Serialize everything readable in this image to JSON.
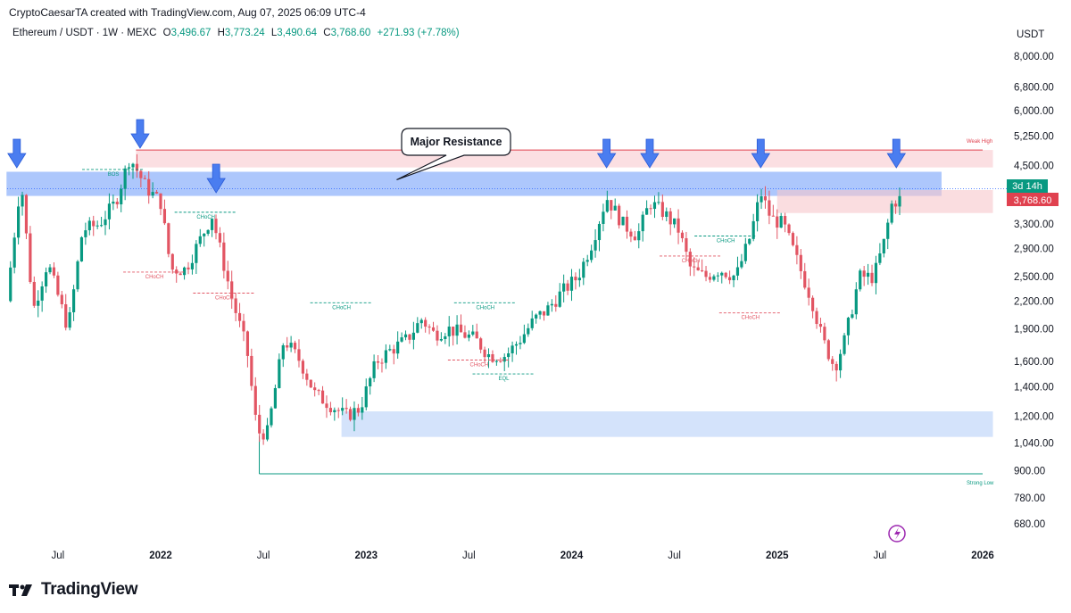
{
  "header": {
    "credit": "CryptoCaesarTA created with TradingView.com, Aug 07, 2025 06:09 UTC-4",
    "symbol": "Ethereum / USDT · 1W · MEXC",
    "open_label": "O",
    "open": "3,496.67",
    "high_label": "H",
    "high": "3,773.24",
    "low_label": "L",
    "low": "3,490.64",
    "close_label": "C",
    "close": "3,768.60",
    "change": "+271.93 (+7.78%)",
    "unit": "USDT"
  },
  "price_badge": {
    "countdown": "3d 14h",
    "price": "3,768.60"
  },
  "footer": {
    "brand": "TradingView"
  },
  "colors": {
    "up": "#089981",
    "down": "#e25563",
    "resistance_zone": "#5b8ff9",
    "support_zone": "#cfe0fb",
    "weak_high": "#e0414f",
    "strong_low": "#089981"
  },
  "chart_data": {
    "type": "candlestick",
    "timeframe": "1W",
    "y_scale": "log",
    "y_ticks": [
      "8,000.00",
      "6,800.00",
      "6,000.00",
      "5,250.00",
      "4,500.00",
      "3,300.00",
      "2,900.00",
      "2,500.00",
      "2,200.00",
      "1,900.00",
      "1,600.00",
      "1,400.00",
      "1,200.00",
      "1,040.00",
      "900.00",
      "780.00",
      "680.00"
    ],
    "y_tick_values": [
      8000,
      6800,
      6000,
      5250,
      4500,
      3300,
      2900,
      2500,
      2200,
      1900,
      1600,
      1400,
      1200,
      1040,
      900,
      780,
      680
    ],
    "x_ticks": [
      {
        "label": "Jul",
        "t": 2021.5,
        "year": false
      },
      {
        "label": "2022",
        "t": 2022.0,
        "year": true
      },
      {
        "label": "Jul",
        "t": 2022.5,
        "year": false
      },
      {
        "label": "2023",
        "t": 2023.0,
        "year": true
      },
      {
        "label": "Jul",
        "t": 2023.5,
        "year": false
      },
      {
        "label": "2024",
        "t": 2024.0,
        "year": true
      },
      {
        "label": "Jul",
        "t": 2024.5,
        "year": false
      },
      {
        "label": "2025",
        "t": 2025.0,
        "year": true
      },
      {
        "label": "Jul",
        "t": 2025.5,
        "year": false
      },
      {
        "label": "2026",
        "t": 2026.0,
        "year": true
      }
    ],
    "price_path": [
      [
        2021.25,
        2200
      ],
      [
        2021.32,
        4200
      ],
      [
        2021.38,
        2100
      ],
      [
        2021.45,
        2700
      ],
      [
        2021.55,
        1900
      ],
      [
        2021.62,
        3200
      ],
      [
        2021.7,
        3300
      ],
      [
        2021.78,
        3700
      ],
      [
        2021.85,
        4700
      ],
      [
        2021.93,
        4000
      ],
      [
        2022.0,
        3700
      ],
      [
        2022.05,
        2600
      ],
      [
        2022.12,
        2600
      ],
      [
        2022.25,
        3450
      ],
      [
        2022.35,
        2200
      ],
      [
        2022.42,
        1700
      ],
      [
        2022.47,
        1100
      ],
      [
        2022.52,
        1100
      ],
      [
        2022.6,
        1800
      ],
      [
        2022.68,
        1600
      ],
      [
        2022.75,
        1350
      ],
      [
        2022.85,
        1250
      ],
      [
        2022.9,
        1200
      ],
      [
        2022.97,
        1250
      ],
      [
        2023.05,
        1600
      ],
      [
        2023.12,
        1700
      ],
      [
        2023.2,
        1800
      ],
      [
        2023.27,
        2000
      ],
      [
        2023.33,
        1850
      ],
      [
        2023.4,
        1900
      ],
      [
        2023.47,
        1850
      ],
      [
        2023.53,
        1800
      ],
      [
        2023.6,
        1650
      ],
      [
        2023.68,
        1650
      ],
      [
        2023.75,
        1800
      ],
      [
        2023.82,
        2000
      ],
      [
        2023.88,
        2100
      ],
      [
        2023.95,
        2300
      ],
      [
        2024.03,
        2500
      ],
      [
        2024.1,
        3000
      ],
      [
        2024.17,
        3800
      ],
      [
        2024.25,
        3300
      ],
      [
        2024.32,
        3100
      ],
      [
        2024.38,
        3700
      ],
      [
        2024.45,
        3500
      ],
      [
        2024.52,
        3200
      ],
      [
        2024.58,
        2600
      ],
      [
        2024.65,
        2500
      ],
      [
        2024.72,
        2600
      ],
      [
        2024.8,
        2500
      ],
      [
        2024.87,
        3100
      ],
      [
        2024.92,
        3900
      ],
      [
        2024.97,
        3400
      ],
      [
        2025.03,
        3300
      ],
      [
        2025.1,
        2700
      ],
      [
        2025.17,
        2200
      ],
      [
        2025.22,
        1800
      ],
      [
        2025.28,
        1550
      ],
      [
        2025.33,
        1800
      ],
      [
        2025.4,
        2500
      ],
      [
        2025.47,
        2500
      ],
      [
        2025.52,
        3000
      ],
      [
        2025.56,
        3700
      ],
      [
        2025.6,
        3770
      ]
    ],
    "zones": [
      {
        "name": "major-resistance-zone",
        "from": 2021.25,
        "to": 2025.8,
        "low": 3830,
        "high": 4350
      },
      {
        "name": "weak-high-zone",
        "from": 2021.88,
        "to": 2026.05,
        "low": 4450,
        "high": 4880
      },
      {
        "name": "recent-supply-zone",
        "from": 2025.0,
        "to": 2026.05,
        "low": 3500,
        "high": 3950
      },
      {
        "name": "demand-zone",
        "from": 2022.88,
        "to": 2026.05,
        "low": 1075,
        "high": 1230
      }
    ],
    "levels": [
      {
        "name": "weak-high-line",
        "label": "Weak High",
        "price": 4880,
        "from": 2021.88,
        "to": 2026.0
      },
      {
        "name": "strong-low-line",
        "label": "Strong Low",
        "price": 885,
        "from": 2022.48,
        "to": 2026.0
      }
    ],
    "annotations": [
      {
        "name": "bos-label",
        "text": "BOS",
        "t": 2021.77,
        "price": 4260,
        "color": "up"
      },
      {
        "name": "choch-1",
        "text": "CHoCH",
        "t": 2021.97,
        "price": 2480,
        "color": "down"
      },
      {
        "name": "choch-2",
        "text": "CHoCH",
        "t": 2022.22,
        "price": 3400,
        "color": "up"
      },
      {
        "name": "choch-3",
        "text": "CHoCH",
        "t": 2022.31,
        "price": 2220,
        "color": "down"
      },
      {
        "name": "choch-4",
        "text": "CHoCH",
        "t": 2022.88,
        "price": 2110,
        "color": "up"
      },
      {
        "name": "choch-5",
        "text": "CHoCH",
        "t": 2023.58,
        "price": 2110,
        "color": "up"
      },
      {
        "name": "choch-6",
        "text": "CHoCH",
        "t": 2023.55,
        "price": 1560,
        "color": "down"
      },
      {
        "name": "eql-1",
        "text": "EQL",
        "t": 2023.67,
        "price": 1450,
        "color": "up"
      },
      {
        "name": "choch-7",
        "text": "CHoCH",
        "t": 2024.58,
        "price": 2700,
        "color": "down"
      },
      {
        "name": "choch-8",
        "text": "CHoCH",
        "t": 2024.75,
        "price": 3000,
        "color": "up"
      },
      {
        "name": "choch-9",
        "text": "CHoCH",
        "t": 2024.87,
        "price": 2000,
        "color": "down"
      }
    ],
    "callout": {
      "text": "Major Resistance",
      "pointer_t": 2023.8,
      "pointer_price": 4170
    },
    "markers": [
      2021.3,
      2021.9,
      2022.27,
      2024.17,
      2024.38,
      2024.92,
      2025.58
    ]
  }
}
